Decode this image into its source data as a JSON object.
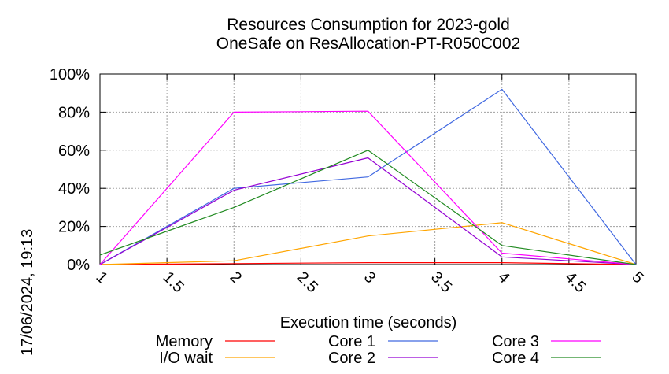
{
  "chart_data": {
    "type": "line",
    "title": "Resources Consumption for 2023-gold",
    "subtitle": "OneSafe on ResAllocation-PT-R050C002",
    "xlabel": "Execution time (seconds)",
    "ylabel": "",
    "timestamp": "17/06/2024, 19:13",
    "xlim": [
      1,
      5
    ],
    "ylim": [
      0,
      100
    ],
    "x_ticks": [
      "1",
      "1.5",
      "2",
      "2.5",
      "3",
      "3.5",
      "4",
      "4.5",
      "5"
    ],
    "y_ticks": [
      "0%",
      "20%",
      "40%",
      "60%",
      "80%",
      "100%"
    ],
    "grid": true,
    "legend_position": "bottom",
    "x": [
      1,
      2,
      3,
      4,
      5
    ],
    "series": [
      {
        "name": "Memory",
        "color": "#ff0000",
        "values": [
          0,
          0.5,
          1,
          1,
          0
        ]
      },
      {
        "name": "I/O wait",
        "color": "#ffa500",
        "values": [
          0,
          2,
          15,
          22,
          0
        ]
      },
      {
        "name": "Core 1",
        "color": "#4169e1",
        "values": [
          0,
          40,
          46,
          92,
          0
        ]
      },
      {
        "name": "Core 2",
        "color": "#9400d3",
        "values": [
          0,
          39,
          56,
          4,
          0
        ]
      },
      {
        "name": "Core 3",
        "color": "#ff00ff",
        "values": [
          0,
          80,
          80.5,
          6,
          0
        ]
      },
      {
        "name": "Core 4",
        "color": "#228b22",
        "values": [
          5,
          30,
          60,
          10,
          0
        ]
      }
    ]
  }
}
